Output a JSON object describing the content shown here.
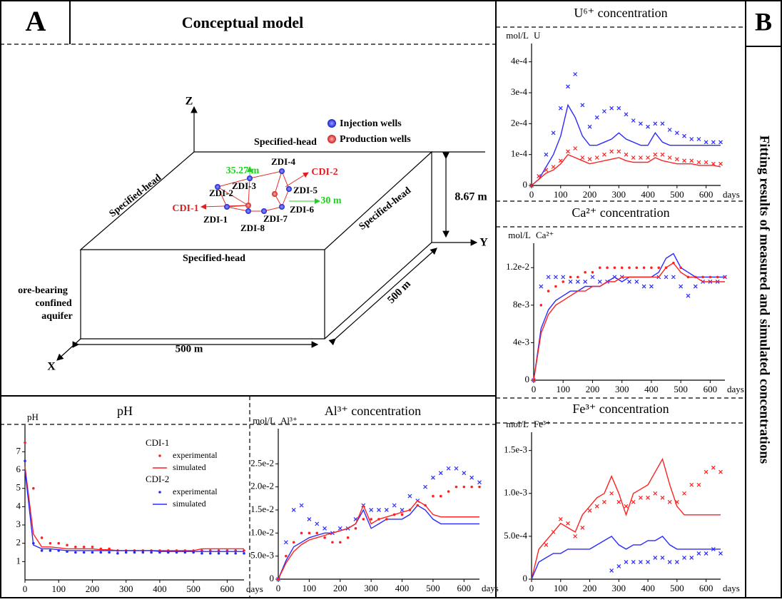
{
  "panel_a": {
    "label": "A",
    "title": "Conceptual model",
    "axes": [
      "Z",
      "Y",
      "X"
    ],
    "boundaries": [
      "Specified-head",
      "Specified-head",
      "Specified-head",
      "Specified-head"
    ],
    "dimensions": [
      "8.67 m",
      "500 m",
      "500 m"
    ],
    "aquifer": [
      "ore-bearing",
      "confined",
      "aquifer"
    ],
    "legend": [
      "Injection wells",
      "Production wells"
    ],
    "wells": [
      "ZDI-1",
      "ZDI-2",
      "ZDI-3",
      "ZDI-4",
      "ZDI-5",
      "ZDI-6",
      "ZDI-7",
      "ZDI-8",
      "CDI-1",
      "CDI-2"
    ],
    "distances": [
      "35.27 m",
      "30 m"
    ]
  },
  "panel_b": {
    "label": "B",
    "title": "Fitting results of measured and simulated concentrations"
  },
  "chart_data": [
    {
      "type": "line",
      "title": "U⁶⁺ concentration",
      "y_unit": "mol/L",
      "y_symbol": "U",
      "xlabel": "days",
      "x": [
        0,
        25,
        50,
        75,
        100,
        125,
        150,
        175,
        200,
        225,
        250,
        275,
        300,
        325,
        350,
        375,
        400,
        425,
        450,
        475,
        500,
        525,
        550,
        575,
        600,
        625,
        650
      ],
      "xlim": [
        0,
        650
      ],
      "xticks": [
        0,
        100,
        200,
        300,
        400,
        500,
        600
      ],
      "ylim": [
        0,
        0.00045
      ],
      "yticks": [
        0,
        {
          "value": 0.0001,
          "label": "1e-4"
        },
        {
          "value": 0.0002,
          "label": "2e-4"
        },
        {
          "value": 0.0003,
          "label": "3e-4"
        },
        {
          "value": 0.0004,
          "label": "4e-4"
        }
      ],
      "series": [
        {
          "style": "points",
          "marker": "x",
          "color": "#2a2aff",
          "values": [
            0,
            3e-05,
            0.0001,
            0.00017,
            0.00025,
            0.00032,
            0.00036,
            0.00026,
            0.00019,
            0.00022,
            0.00024,
            0.00025,
            0.00025,
            0.00023,
            0.00021,
            0.0002,
            0.00019,
            0.0002,
            0.0002,
            0.00018,
            0.00017,
            0.00016,
            0.00015,
            0.00015,
            0.00014,
            0.00014,
            0.00014
          ]
        },
        {
          "style": "line",
          "color": "#2a2aff",
          "values": [
            0,
            2e-05,
            6e-05,
            0.0001,
            0.00016,
            0.00026,
            0.00022,
            0.00016,
            0.00013,
            0.00013,
            0.00014,
            0.00015,
            0.00017,
            0.00015,
            0.00014,
            0.00013,
            0.00013,
            0.00017,
            0.00014,
            0.00013,
            0.00013,
            0.00013,
            0.00013,
            0.00013,
            0.00013,
            0.00013,
            0.00013
          ]
        },
        {
          "style": "points",
          "marker": "x",
          "color": "#ff2020",
          "values": [
            0,
            3e-05,
            5e-05,
            6e-05,
            8e-05,
            0.00011,
            0.00012,
            9e-05,
            8.5e-05,
            9e-05,
            0.0001,
            0.00011,
            0.00011,
            0.0001,
            9e-05,
            9e-05,
            9e-05,
            0.0001,
            0.0001,
            9e-05,
            8.5e-05,
            8e-05,
            8e-05,
            7.5e-05,
            7.5e-05,
            7e-05,
            7e-05
          ]
        },
        {
          "style": "line",
          "color": "#ff2020",
          "values": [
            0,
            2e-05,
            4e-05,
            5e-05,
            7e-05,
            0.0001,
            9e-05,
            8e-05,
            7e-05,
            7.5e-05,
            8e-05,
            8.5e-05,
            9e-05,
            8e-05,
            7.5e-05,
            7.5e-05,
            7.5e-05,
            9e-05,
            8e-05,
            7.5e-05,
            7e-05,
            7e-05,
            7e-05,
            6.5e-05,
            6.5e-05,
            6.5e-05,
            6e-05
          ]
        }
      ]
    },
    {
      "type": "line",
      "title": "Ca²⁺ concentration",
      "y_unit": "mol/L",
      "y_symbol": "Ca²⁺",
      "xlabel": "days",
      "x": [
        0,
        25,
        50,
        75,
        100,
        125,
        150,
        175,
        200,
        225,
        250,
        275,
        300,
        325,
        350,
        375,
        400,
        425,
        450,
        475,
        500,
        525,
        550,
        575,
        600,
        625,
        650
      ],
      "xlim": [
        0,
        650
      ],
      "xticks": [
        0,
        100,
        200,
        300,
        400,
        500,
        600
      ],
      "ylim": [
        0,
        0.0143
      ],
      "yticks": [
        0,
        {
          "value": 0.004,
          "label": "4e-3"
        },
        {
          "value": 0.008,
          "label": "8e-3"
        },
        {
          "value": 0.012,
          "label": "1.2e-2"
        }
      ],
      "series": [
        {
          "style": "points",
          "marker": "x",
          "color": "#2a2aff",
          "values": [
            0,
            0.01,
            0.011,
            0.011,
            0.011,
            0.0105,
            0.0105,
            0.0105,
            0.011,
            0.0105,
            0.0105,
            0.011,
            0.011,
            0.0105,
            0.0105,
            0.01,
            0.01,
            0.011,
            0.011,
            0.011,
            0.01,
            0.009,
            0.01,
            0.0105,
            0.0105,
            0.0105,
            0.011
          ]
        },
        {
          "style": "line",
          "color": "#2a2aff",
          "values": [
            0,
            0.0055,
            0.0075,
            0.0085,
            0.009,
            0.0095,
            0.0095,
            0.01,
            0.01,
            0.01,
            0.0105,
            0.011,
            0.0105,
            0.011,
            0.011,
            0.011,
            0.011,
            0.0115,
            0.013,
            0.0135,
            0.012,
            0.0115,
            0.011,
            0.011,
            0.011,
            0.011,
            0.011
          ]
        },
        {
          "style": "points",
          "marker": "dot",
          "color": "#ff2020",
          "values": [
            0,
            0.008,
            0.0095,
            0.01,
            0.0105,
            0.011,
            0.011,
            0.0115,
            0.0115,
            0.012,
            0.012,
            0.012,
            0.012,
            0.012,
            0.012,
            0.012,
            0.012,
            0.012,
            0.012,
            0.0125,
            0.012,
            0.011,
            0.011,
            0.011,
            0.011,
            0.011,
            0.011
          ]
        },
        {
          "style": "line",
          "color": "#ff2020",
          "values": [
            0,
            0.005,
            0.007,
            0.008,
            0.0085,
            0.009,
            0.0095,
            0.0095,
            0.01,
            0.01,
            0.0105,
            0.0105,
            0.011,
            0.011,
            0.011,
            0.011,
            0.011,
            0.011,
            0.012,
            0.0125,
            0.0115,
            0.011,
            0.011,
            0.0105,
            0.0105,
            0.0105,
            0.0105
          ]
        }
      ]
    },
    {
      "type": "line",
      "title": "Fe³⁺ concentration",
      "y_unit": "mol/L",
      "y_symbol": "Fe³⁺",
      "xlabel": "days",
      "x": [
        0,
        25,
        50,
        75,
        100,
        125,
        150,
        175,
        200,
        225,
        250,
        275,
        300,
        325,
        350,
        375,
        400,
        425,
        450,
        475,
        500,
        525,
        550,
        575,
        600,
        625,
        650
      ],
      "xlim": [
        0,
        650
      ],
      "xticks": [
        0,
        100,
        200,
        300,
        400,
        500,
        600
      ],
      "ylim": [
        0,
        0.00168
      ],
      "yticks": [
        0,
        {
          "value": 0.0005,
          "label": "5.0e-4"
        },
        {
          "value": 0.001,
          "label": "1.0e-3"
        },
        {
          "value": 0.0015,
          "label": "1.5e-3"
        }
      ],
      "series": [
        {
          "style": "points",
          "marker": "x",
          "color": "#ff2020",
          "values": [
            null,
            null,
            0.0004,
            0.00055,
            0.0007,
            0.00065,
            0.0005,
            0.0006,
            0.0008,
            0.00085,
            0.0009,
            0.001,
            0.0009,
            0.00085,
            0.0009,
            0.00095,
            0.00095,
            0.001,
            0.00095,
            0.0009,
            0.0009,
            0.001,
            0.0011,
            0.0011,
            0.00125,
            0.0013,
            0.00125
          ]
        },
        {
          "style": "line",
          "color": "#ff2020",
          "values": [
            0,
            0.00035,
            0.00045,
            0.00055,
            0.00065,
            0.0006,
            0.00055,
            0.00075,
            0.00085,
            0.00095,
            0.001,
            0.0012,
            0.001,
            0.00075,
            0.001,
            0.00105,
            0.0011,
            0.00125,
            0.0014,
            0.0011,
            0.00085,
            0.00075,
            0.00075,
            0.00075,
            0.00075,
            0.00075,
            0.00075
          ]
        },
        {
          "style": "points",
          "marker": "x",
          "color": "#2a2aff",
          "values": [
            null,
            null,
            null,
            null,
            null,
            null,
            null,
            null,
            null,
            null,
            null,
            0.0001,
            0.00015,
            0.0002,
            0.0002,
            0.0002,
            0.0002,
            0.00025,
            0.00025,
            0.0002,
            0.0002,
            0.00025,
            0.00025,
            0.0003,
            0.0003,
            0.00035,
            0.0003
          ]
        },
        {
          "style": "line",
          "color": "#2a2aff",
          "values": [
            0,
            0.0002,
            0.00025,
            0.0003,
            0.0003,
            0.00035,
            0.00035,
            0.00035,
            0.00035,
            0.0004,
            0.00045,
            0.0005,
            0.0004,
            0.00035,
            0.0004,
            0.0004,
            0.00045,
            0.00045,
            0.0005,
            0.0004,
            0.00035,
            0.00035,
            0.00035,
            0.00035,
            0.00035,
            0.00035,
            0.00035
          ]
        }
      ]
    },
    {
      "type": "line",
      "title": "pH",
      "y_symbol": "pH",
      "xlabel": "days",
      "legend": "upper right",
      "x": [
        0,
        25,
        50,
        75,
        100,
        125,
        150,
        175,
        200,
        225,
        250,
        275,
        300,
        325,
        350,
        375,
        400,
        425,
        450,
        475,
        500,
        525,
        550,
        575,
        600,
        625,
        650
      ],
      "xlim": [
        0,
        650
      ],
      "xticks": [
        0,
        100,
        200,
        300,
        400,
        500,
        600
      ],
      "ylim": [
        0,
        8.3
      ],
      "yticks": [
        1,
        2,
        3,
        4,
        5,
        6,
        7
      ],
      "series": [
        {
          "group": "CDI-1",
          "name": "experimental",
          "style": "points",
          "marker": "dot",
          "color": "#ff2020",
          "values": [
            7.5,
            5.0,
            2.3,
            2.0,
            2.0,
            1.9,
            1.8,
            1.8,
            1.8,
            1.7,
            1.7,
            1.6,
            1.6,
            1.6,
            1.6,
            1.6,
            1.6,
            1.6,
            1.6,
            1.6,
            1.6,
            1.6,
            1.6,
            1.6,
            1.6,
            1.6,
            1.6
          ]
        },
        {
          "group": "CDI-1",
          "name": "simulated",
          "style": "line",
          "color": "#ff2020",
          "values": [
            6.2,
            2.5,
            1.8,
            1.8,
            1.75,
            1.7,
            1.7,
            1.7,
            1.7,
            1.65,
            1.65,
            1.6,
            1.6,
            1.6,
            1.6,
            1.6,
            1.6,
            1.6,
            1.6,
            1.6,
            1.6,
            1.7,
            1.7,
            1.7,
            1.7,
            1.7,
            1.7
          ]
        },
        {
          "group": "CDI-2",
          "name": "experimental",
          "style": "points",
          "marker": "dot",
          "color": "#2a2aff",
          "values": [
            6.5,
            2.0,
            1.6,
            1.6,
            1.6,
            1.55,
            1.5,
            1.5,
            1.5,
            1.5,
            1.5,
            1.45,
            1.5,
            1.5,
            1.5,
            1.5,
            1.5,
            1.5,
            1.5,
            1.5,
            1.5,
            1.45,
            1.45,
            1.45,
            1.45,
            1.45,
            1.45
          ]
        },
        {
          "group": "CDI-2",
          "name": "simulated",
          "style": "line",
          "color": "#2a2aff",
          "values": [
            6.0,
            1.9,
            1.7,
            1.7,
            1.65,
            1.6,
            1.6,
            1.6,
            1.6,
            1.6,
            1.6,
            1.6,
            1.6,
            1.6,
            1.6,
            1.6,
            1.55,
            1.55,
            1.55,
            1.55,
            1.55,
            1.55,
            1.55,
            1.55,
            1.55,
            1.55,
            1.55
          ]
        }
      ]
    },
    {
      "type": "line",
      "title": "Al³⁺ concentration",
      "y_unit": "mol/L",
      "y_symbol": "Al³⁺",
      "xlabel": "days",
      "x": [
        0,
        25,
        50,
        75,
        100,
        125,
        150,
        175,
        200,
        225,
        250,
        275,
        300,
        325,
        350,
        375,
        400,
        425,
        450,
        475,
        500,
        525,
        550,
        575,
        600,
        625,
        650
      ],
      "xlim": [
        0,
        650
      ],
      "xticks": [
        0,
        100,
        200,
        300,
        400,
        500,
        600
      ],
      "ylim": [
        0,
        0.032
      ],
      "yticks": [
        0,
        {
          "value": 0.005,
          "label": "5.0e-3"
        },
        {
          "value": 0.01,
          "label": "1.0e-2"
        },
        {
          "value": 0.015,
          "label": "1.5e-2"
        },
        {
          "value": 0.02,
          "label": "2.0e-2"
        },
        {
          "value": 0.025,
          "label": "2.5e-2"
        }
      ],
      "series": [
        {
          "style": "points",
          "marker": "x",
          "color": "#2a2aff",
          "values": [
            0,
            0.008,
            0.015,
            0.016,
            0.013,
            0.012,
            0.011,
            0.01,
            0.011,
            0.011,
            0.013,
            0.016,
            0.015,
            0.015,
            0.015,
            0.016,
            0.015,
            0.018,
            0.017,
            0.02,
            0.022,
            0.023,
            0.024,
            0.024,
            0.023,
            0.022,
            0.021
          ]
        },
        {
          "style": "line",
          "color": "#2a2aff",
          "values": [
            0,
            0.004,
            0.007,
            0.008,
            0.009,
            0.0095,
            0.01,
            0.01,
            0.0105,
            0.011,
            0.012,
            0.015,
            0.011,
            0.012,
            0.013,
            0.013,
            0.013,
            0.014,
            0.016,
            0.015,
            0.013,
            0.012,
            0.012,
            0.012,
            0.012,
            0.012,
            0.012
          ]
        },
        {
          "style": "points",
          "marker": "dot",
          "color": "#ff2020",
          "values": [
            0,
            0.005,
            0.008,
            0.01,
            0.01,
            0.01,
            0.009,
            0.008,
            0.008,
            0.009,
            0.011,
            0.013,
            0.013,
            0.013,
            0.013,
            0.014,
            0.014,
            0.015,
            0.016,
            0.016,
            0.018,
            0.018,
            0.019,
            0.02,
            0.02,
            0.02,
            0.02
          ]
        },
        {
          "style": "line",
          "color": "#ff2020",
          "values": [
            0,
            0.0035,
            0.006,
            0.0075,
            0.0085,
            0.009,
            0.0095,
            0.01,
            0.0105,
            0.011,
            0.012,
            0.016,
            0.012,
            0.013,
            0.0135,
            0.014,
            0.0145,
            0.015,
            0.017,
            0.016,
            0.014,
            0.0135,
            0.0135,
            0.0135,
            0.0135,
            0.0135,
            0.0135
          ]
        }
      ]
    }
  ]
}
